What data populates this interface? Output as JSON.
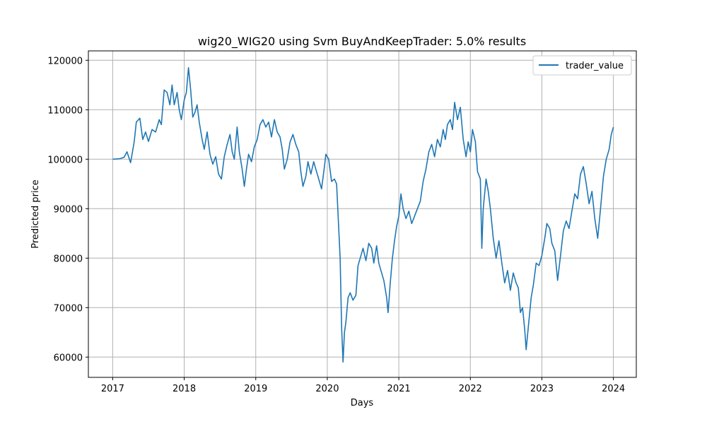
{
  "chart_data": {
    "type": "line",
    "title": "wig20_WIG20 using Svm BuyAndKeepTrader: 5.0% results",
    "xlabel": "Days",
    "ylabel": "Predicted price",
    "x_ticks": [
      2017,
      2018,
      2019,
      2020,
      2021,
      2022,
      2023,
      2024
    ],
    "y_ticks": [
      60000,
      70000,
      80000,
      90000,
      100000,
      110000,
      120000
    ],
    "xlim": [
      2016.66,
      2024.32
    ],
    "ylim": [
      55900,
      121900
    ],
    "grid": true,
    "legend": "top-right",
    "line_color": "#1f77b4",
    "series": [
      {
        "name": "trader_value",
        "points": [
          [
            2017.0,
            100000
          ],
          [
            2017.1,
            100100
          ],
          [
            2017.16,
            100400
          ],
          [
            2017.2,
            101500
          ],
          [
            2017.25,
            99300
          ],
          [
            2017.3,
            103500
          ],
          [
            2017.33,
            107500
          ],
          [
            2017.38,
            108300
          ],
          [
            2017.42,
            104000
          ],
          [
            2017.46,
            105500
          ],
          [
            2017.5,
            103600
          ],
          [
            2017.55,
            106000
          ],
          [
            2017.6,
            105500
          ],
          [
            2017.65,
            108000
          ],
          [
            2017.68,
            107000
          ],
          [
            2017.72,
            114000
          ],
          [
            2017.76,
            113500
          ],
          [
            2017.8,
            111000
          ],
          [
            2017.83,
            115000
          ],
          [
            2017.86,
            111000
          ],
          [
            2017.9,
            113500
          ],
          [
            2017.93,
            110000
          ],
          [
            2017.96,
            108000
          ],
          [
            2018.0,
            112000
          ],
          [
            2018.03,
            113500
          ],
          [
            2018.06,
            118500
          ],
          [
            2018.09,
            114000
          ],
          [
            2018.12,
            108500
          ],
          [
            2018.15,
            109500
          ],
          [
            2018.18,
            111000
          ],
          [
            2018.21,
            107500
          ],
          [
            2018.25,
            104000
          ],
          [
            2018.28,
            102000
          ],
          [
            2018.32,
            105500
          ],
          [
            2018.36,
            101000
          ],
          [
            2018.4,
            99000
          ],
          [
            2018.44,
            100500
          ],
          [
            2018.48,
            97000
          ],
          [
            2018.52,
            96000
          ],
          [
            2018.56,
            100500
          ],
          [
            2018.6,
            103000
          ],
          [
            2018.64,
            105000
          ],
          [
            2018.67,
            101500
          ],
          [
            2018.7,
            100000
          ],
          [
            2018.74,
            106500
          ],
          [
            2018.77,
            101500
          ],
          [
            2018.81,
            98000
          ],
          [
            2018.84,
            94500
          ],
          [
            2018.87,
            98000
          ],
          [
            2018.9,
            101000
          ],
          [
            2018.94,
            99500
          ],
          [
            2018.98,
            102500
          ],
          [
            2019.02,
            104000
          ],
          [
            2019.06,
            107000
          ],
          [
            2019.1,
            108000
          ],
          [
            2019.14,
            106500
          ],
          [
            2019.18,
            107500
          ],
          [
            2019.22,
            104500
          ],
          [
            2019.26,
            108000
          ],
          [
            2019.3,
            105500
          ],
          [
            2019.34,
            104500
          ],
          [
            2019.37,
            102000
          ],
          [
            2019.4,
            98000
          ],
          [
            2019.44,
            100000
          ],
          [
            2019.48,
            103500
          ],
          [
            2019.52,
            105000
          ],
          [
            2019.56,
            103000
          ],
          [
            2019.6,
            101500
          ],
          [
            2019.63,
            97500
          ],
          [
            2019.66,
            94500
          ],
          [
            2019.7,
            96500
          ],
          [
            2019.73,
            99500
          ],
          [
            2019.77,
            97000
          ],
          [
            2019.81,
            99500
          ],
          [
            2019.85,
            97500
          ],
          [
            2019.88,
            96000
          ],
          [
            2019.92,
            94000
          ],
          [
            2019.96,
            98500
          ],
          [
            2019.98,
            101000
          ],
          [
            2020.02,
            100000
          ],
          [
            2020.06,
            95500
          ],
          [
            2020.1,
            96000
          ],
          [
            2020.13,
            95000
          ],
          [
            2020.16,
            86000
          ],
          [
            2020.18,
            80000
          ],
          [
            2020.2,
            66000
          ],
          [
            2020.22,
            59000
          ],
          [
            2020.24,
            65000
          ],
          [
            2020.26,
            67000
          ],
          [
            2020.29,
            72000
          ],
          [
            2020.32,
            73000
          ],
          [
            2020.36,
            71500
          ],
          [
            2020.4,
            72500
          ],
          [
            2020.43,
            78500
          ],
          [
            2020.46,
            80000
          ],
          [
            2020.5,
            82000
          ],
          [
            2020.54,
            79500
          ],
          [
            2020.58,
            83000
          ],
          [
            2020.62,
            82000
          ],
          [
            2020.65,
            79000
          ],
          [
            2020.69,
            82500
          ],
          [
            2020.72,
            79000
          ],
          [
            2020.75,
            77500
          ],
          [
            2020.79,
            75500
          ],
          [
            2020.83,
            72000
          ],
          [
            2020.85,
            69000
          ],
          [
            2020.88,
            75000
          ],
          [
            2020.91,
            80000
          ],
          [
            2020.94,
            83500
          ],
          [
            2020.97,
            86500
          ],
          [
            2021.0,
            88500
          ],
          [
            2021.03,
            93000
          ],
          [
            2021.06,
            90000
          ],
          [
            2021.1,
            88000
          ],
          [
            2021.14,
            89500
          ],
          [
            2021.18,
            87000
          ],
          [
            2021.22,
            88500
          ],
          [
            2021.26,
            90000
          ],
          [
            2021.3,
            91500
          ],
          [
            2021.34,
            95500
          ],
          [
            2021.38,
            98000
          ],
          [
            2021.42,
            101500
          ],
          [
            2021.46,
            103000
          ],
          [
            2021.5,
            100500
          ],
          [
            2021.54,
            104000
          ],
          [
            2021.58,
            102500
          ],
          [
            2021.62,
            106000
          ],
          [
            2021.65,
            104000
          ],
          [
            2021.68,
            107000
          ],
          [
            2021.72,
            108000
          ],
          [
            2021.75,
            106000
          ],
          [
            2021.78,
            111500
          ],
          [
            2021.82,
            108000
          ],
          [
            2021.86,
            110500
          ],
          [
            2021.9,
            104000
          ],
          [
            2021.94,
            100500
          ],
          [
            2021.97,
            103500
          ],
          [
            2022.0,
            101500
          ],
          [
            2022.03,
            106000
          ],
          [
            2022.07,
            103500
          ],
          [
            2022.1,
            97500
          ],
          [
            2022.14,
            96000
          ],
          [
            2022.16,
            82000
          ],
          [
            2022.18,
            90000
          ],
          [
            2022.22,
            96000
          ],
          [
            2022.25,
            93500
          ],
          [
            2022.28,
            90000
          ],
          [
            2022.32,
            84000
          ],
          [
            2022.36,
            80000
          ],
          [
            2022.4,
            83500
          ],
          [
            2022.44,
            79000
          ],
          [
            2022.48,
            75000
          ],
          [
            2022.52,
            77500
          ],
          [
            2022.56,
            73500
          ],
          [
            2022.6,
            77000
          ],
          [
            2022.64,
            75000
          ],
          [
            2022.67,
            74000
          ],
          [
            2022.7,
            69000
          ],
          [
            2022.73,
            70000
          ],
          [
            2022.76,
            65500
          ],
          [
            2022.78,
            61500
          ],
          [
            2022.81,
            66000
          ],
          [
            2022.85,
            72000
          ],
          [
            2022.88,
            74500
          ],
          [
            2022.92,
            79000
          ],
          [
            2022.96,
            78500
          ],
          [
            2023.0,
            80500
          ],
          [
            2023.04,
            84000
          ],
          [
            2023.07,
            87000
          ],
          [
            2023.11,
            86000
          ],
          [
            2023.14,
            83000
          ],
          [
            2023.18,
            81500
          ],
          [
            2023.22,
            75500
          ],
          [
            2023.26,
            80500
          ],
          [
            2023.3,
            85500
          ],
          [
            2023.34,
            87500
          ],
          [
            2023.38,
            86000
          ],
          [
            2023.42,
            89500
          ],
          [
            2023.46,
            93000
          ],
          [
            2023.5,
            92000
          ],
          [
            2023.54,
            97000
          ],
          [
            2023.58,
            98500
          ],
          [
            2023.62,
            95000
          ],
          [
            2023.66,
            91000
          ],
          [
            2023.7,
            93500
          ],
          [
            2023.74,
            88000
          ],
          [
            2023.78,
            84000
          ],
          [
            2023.82,
            90000
          ],
          [
            2023.86,
            96500
          ],
          [
            2023.9,
            100000
          ],
          [
            2023.94,
            102000
          ],
          [
            2023.97,
            105000
          ],
          [
            2024.0,
            106500
          ]
        ]
      }
    ]
  }
}
